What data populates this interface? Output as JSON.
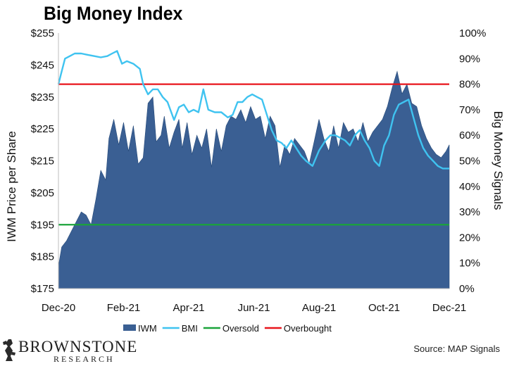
{
  "chart_data": {
    "type": "area",
    "title": "Big Money Index",
    "ylabel_left": "IWM Price per Share",
    "ylabel_right": "Big Money Signals",
    "ylim_left": [
      175,
      255
    ],
    "ylim_right": [
      0,
      100
    ],
    "yticks_left": [
      "$175",
      "$185",
      "$195",
      "$205",
      "$215",
      "$225",
      "$235",
      "$245",
      "$255"
    ],
    "yticks_right": [
      "0%",
      "10%",
      "20%",
      "30%",
      "40%",
      "50%",
      "60%",
      "70%",
      "80%",
      "90%",
      "100%"
    ],
    "xticks": [
      "Dec-20",
      "Feb-21",
      "Apr-21",
      "Jun-21",
      "Aug-21",
      "Oct-21",
      "Dec-21"
    ],
    "x_range": [
      0,
      12
    ],
    "grid": false,
    "legend_position": "bottom",
    "series": [
      {
        "name": "IWM",
        "kind": "area",
        "axis": "left",
        "color": "#3a5f93",
        "x": [
          0.0,
          0.1,
          0.25,
          0.4,
          0.55,
          0.7,
          0.85,
          1.0,
          1.15,
          1.3,
          1.45,
          1.55,
          1.7,
          1.85,
          2.0,
          2.15,
          2.3,
          2.45,
          2.6,
          2.75,
          2.9,
          3.0,
          3.15,
          3.25,
          3.4,
          3.55,
          3.7,
          3.8,
          3.95,
          4.1,
          4.25,
          4.4,
          4.55,
          4.7,
          4.85,
          5.0,
          5.15,
          5.3,
          5.45,
          5.6,
          5.75,
          5.9,
          6.05,
          6.2,
          6.35,
          6.5,
          6.65,
          6.8,
          6.95,
          7.1,
          7.25,
          7.4,
          7.55,
          7.7,
          7.85,
          8.0,
          8.15,
          8.3,
          8.45,
          8.6,
          8.75,
          8.9,
          9.05,
          9.2,
          9.35,
          9.5,
          9.65,
          9.8,
          9.95,
          10.1,
          10.25,
          10.4,
          10.55,
          10.7,
          10.85,
          11.0,
          11.15,
          11.3,
          11.45,
          11.6,
          11.75,
          11.9,
          12.0
        ],
        "values": [
          182,
          188,
          190,
          193,
          196,
          199,
          198,
          195,
          203,
          212,
          209,
          222,
          228,
          220,
          227,
          218,
          226,
          214,
          216,
          233,
          235,
          221,
          223,
          229,
          219,
          224,
          228,
          219,
          227,
          217,
          223,
          219,
          225,
          213,
          225,
          218,
          226,
          229,
          228,
          231,
          227,
          232,
          228,
          229,
          222,
          229,
          226,
          213,
          220,
          217,
          222,
          220,
          218,
          214,
          221,
          228,
          222,
          218,
          226,
          219,
          227,
          224,
          225,
          221,
          227,
          221,
          224,
          226,
          228,
          232,
          238,
          243,
          236,
          239,
          233,
          232,
          226,
          222,
          219,
          217,
          216,
          218,
          220
        ]
      },
      {
        "name": "BMI",
        "kind": "line",
        "axis": "right",
        "color": "#3fc3f0",
        "x": [
          0.0,
          0.1,
          0.2,
          0.35,
          0.5,
          0.7,
          0.9,
          1.1,
          1.3,
          1.5,
          1.65,
          1.8,
          1.95,
          2.1,
          2.3,
          2.5,
          2.6,
          2.75,
          2.9,
          3.05,
          3.2,
          3.35,
          3.55,
          3.7,
          3.85,
          4.0,
          4.15,
          4.3,
          4.45,
          4.6,
          4.8,
          5.0,
          5.2,
          5.35,
          5.5,
          5.65,
          5.8,
          5.95,
          6.1,
          6.25,
          6.4,
          6.55,
          6.7,
          6.85,
          7.0,
          7.15,
          7.3,
          7.45,
          7.6,
          7.8,
          8.0,
          8.2,
          8.35,
          8.5,
          8.65,
          8.8,
          8.95,
          9.1,
          9.25,
          9.4,
          9.55,
          9.7,
          9.85,
          10.0,
          10.15,
          10.3,
          10.45,
          10.6,
          10.75,
          10.9,
          11.05,
          11.2,
          11.35,
          11.5,
          11.65,
          11.8,
          11.9,
          12.0
        ],
        "values": [
          80,
          85,
          90,
          91,
          92,
          92,
          91.5,
          91,
          90.5,
          91,
          92,
          93,
          88,
          89,
          88,
          86,
          80,
          76,
          78,
          78,
          75,
          73,
          66,
          71,
          72,
          69,
          70,
          69,
          78,
          70,
          69,
          69,
          67,
          68,
          73,
          73,
          75,
          76,
          75,
          74,
          68,
          62,
          58,
          57,
          55,
          58,
          55,
          52,
          50,
          48,
          54,
          58,
          60,
          60,
          59,
          58,
          56,
          60,
          62,
          58,
          55,
          50,
          48,
          56,
          60,
          68,
          72,
          73,
          74,
          67,
          60,
          55,
          52,
          50,
          48,
          47,
          47,
          47
        ]
      },
      {
        "name": "Oversold",
        "kind": "hline",
        "axis": "right",
        "color": "#1aa33a",
        "value": 25
      },
      {
        "name": "Overbought",
        "kind": "hline",
        "axis": "right",
        "color": "#e8151b",
        "value": 80
      }
    ]
  },
  "footer": {
    "brand_name": "BROWNSTONE",
    "brand_sub": "RESEARCH",
    "source": "Source: MAP Signals"
  }
}
